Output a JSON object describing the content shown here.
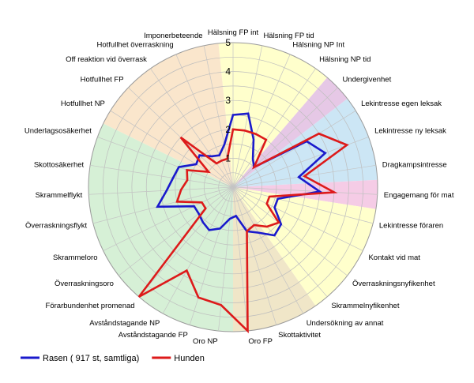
{
  "chart_data": {
    "type": "radar",
    "rlim": [
      0,
      5
    ],
    "ticks": [
      "1",
      "2",
      "3",
      "4",
      "5"
    ],
    "grid": true,
    "legend_position": "bottom-left",
    "axes": [
      "Hälsning FP int",
      "Hälsning FP tid",
      "Hälsning NP Int",
      "Hälsning NP tid",
      "Undergivenhet",
      "Lekintresse egen leksak",
      "Lekintresse ny leksak",
      "Dragkampsintresse",
      "Engagemang för mat",
      "Lekintresse föraren",
      "Kontakt vid mat",
      "Överraskningsnyfikenhet",
      "Skrammelnyfikenhet",
      "Undersökning av annat",
      "Skottaktivitet",
      "Oro FP",
      "Oro NP",
      "Avståndstagande FP",
      "Avståndstagande NP",
      "Förarbundenhet promenad",
      "Överraskningsoro",
      "Skrammeloro",
      "Överraskningsflykt",
      "Skrammelflykt",
      "Skottosäkerhet",
      "Underlagsosäkerhet",
      "Hotfullhet NP",
      "Hotfullhet FP",
      "Off reaktion vid överrask",
      "Hotfullhet överraskning",
      "Imponerbeteende"
    ],
    "sectors": [
      {
        "from": 0,
        "to": 4,
        "color": "#ffffcc"
      },
      {
        "from": 4,
        "to": 5,
        "color": "#e6c8e6"
      },
      {
        "from": 5,
        "to": 8,
        "color": "#cce6f5"
      },
      {
        "from": 8,
        "to": 9,
        "color": "#f5cce6"
      },
      {
        "from": 9,
        "to": 13,
        "color": "#ffffcc"
      },
      {
        "from": 13,
        "to": 16,
        "color": "#f0e6c8"
      },
      {
        "from": 16,
        "to": 26,
        "color": "#d6f0d6"
      },
      {
        "from": 26,
        "to": 31,
        "color": "#fae6cc"
      }
    ],
    "series": [
      {
        "name": "Rasen ( 917 st, samtliga)",
        "color": "#1a1acc",
        "values": [
          2.5,
          2.6,
          1.8,
          1.2,
          1.0,
          3.0,
          3.4,
          2.3,
          3.0,
          1.6,
          1.6,
          2.1,
          2.2,
          1.8,
          1.6,
          1.0,
          1.1,
          1.5,
          1.7,
          1.6,
          1.5,
          1.5,
          2.7,
          2.3,
          2.1,
          2.0,
          1.5,
          1.6,
          1.3,
          1.2,
          1.5
        ]
      },
      {
        "name": "Hunden",
        "color": "#dd1a1a",
        "values": [
          2.0,
          2.0,
          2.0,
          2.0,
          1.0,
          3.5,
          4.2,
          2.5,
          3.5,
          1.3,
          1.3,
          2.0,
          1.8,
          1.5,
          1.6,
          5.0,
          4.1,
          4.0,
          3.3,
          5.0,
          1.2,
          1.2,
          2.0,
          1.8,
          1.6,
          1.7,
          1.0,
          2.5,
          1.0,
          1.0,
          1.0
        ]
      }
    ]
  }
}
